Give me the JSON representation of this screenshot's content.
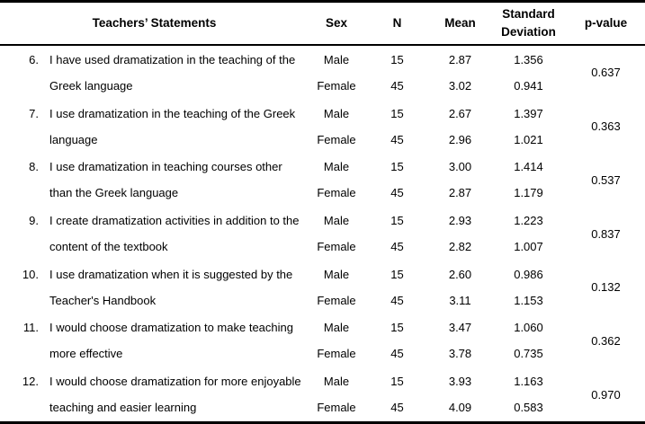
{
  "colors": {
    "text": "#000000",
    "border": "#000000",
    "background": "#ffffff"
  },
  "header": {
    "statements": "Teachers’ Statements",
    "sex": "Sex",
    "n": "N",
    "mean": "Mean",
    "sd_line1": "Standard",
    "sd_line2": "Deviation",
    "pvalue": "p-value"
  },
  "rows": [
    {
      "num": "6.",
      "statement_line1": "I have used dramatization in the teaching of the",
      "statement_line2": "Greek language",
      "male": {
        "sex": "Male",
        "n": "15",
        "mean": "2.87",
        "sd": "1.356"
      },
      "female": {
        "sex": "Female",
        "n": "45",
        "mean": "3.02",
        "sd": "0.941"
      },
      "pvalue": "0.637"
    },
    {
      "num": "7.",
      "statement_line1": "I use dramatization in the teaching of the Greek",
      "statement_line2": "language",
      "male": {
        "sex": "Male",
        "n": "15",
        "mean": "2.67",
        "sd": "1.397"
      },
      "female": {
        "sex": "Female",
        "n": "45",
        "mean": "2.96",
        "sd": "1.021"
      },
      "pvalue": "0.363"
    },
    {
      "num": "8.",
      "statement_line1": "I use dramatization in teaching courses other",
      "statement_line2": "than the Greek language",
      "male": {
        "sex": "Male",
        "n": "15",
        "mean": "3.00",
        "sd": "1.414"
      },
      "female": {
        "sex": "Female",
        "n": "45",
        "mean": "2.87",
        "sd": "1.179"
      },
      "pvalue": "0.537"
    },
    {
      "num": "9.",
      "statement_line1": "I create dramatization activities in addition to the",
      "statement_line2": "content of the textbook",
      "male": {
        "sex": "Male",
        "n": "15",
        "mean": "2.93",
        "sd": "1.223"
      },
      "female": {
        "sex": "Female",
        "n": "45",
        "mean": "2.82",
        "sd": "1.007"
      },
      "pvalue": "0.837"
    },
    {
      "num": "10.",
      "statement_line1": "I use dramatization when it is suggested by the",
      "statement_line2": "Teacher's Handbook",
      "male": {
        "sex": "Male",
        "n": "15",
        "mean": "2.60",
        "sd": "0.986"
      },
      "female": {
        "sex": "Female",
        "n": "45",
        "mean": "3.11",
        "sd": "1.153"
      },
      "pvalue": "0.132"
    },
    {
      "num": "11.",
      "statement_line1": "I would choose dramatization to make teaching",
      "statement_line2": "more effective",
      "male": {
        "sex": "Male",
        "n": "15",
        "mean": "3.47",
        "sd": "1.060"
      },
      "female": {
        "sex": "Female",
        "n": "45",
        "mean": "3.78",
        "sd": "0.735"
      },
      "pvalue": "0.362"
    },
    {
      "num": "12.",
      "statement_line1": "I would choose dramatization for more enjoyable",
      "statement_line2": "teaching and easier learning",
      "male": {
        "sex": "Male",
        "n": "15",
        "mean": "3.93",
        "sd": "1.163"
      },
      "female": {
        "sex": "Female",
        "n": "45",
        "mean": "4.09",
        "sd": "0.583"
      },
      "pvalue": "0.970"
    }
  ]
}
